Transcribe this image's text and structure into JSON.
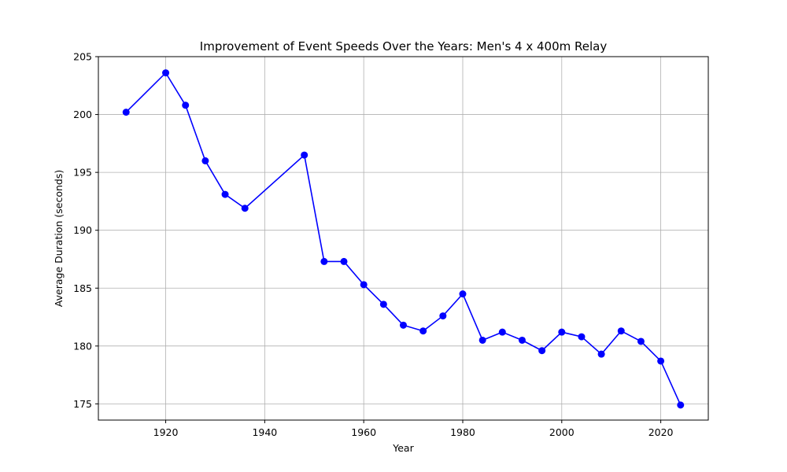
{
  "chart_data": {
    "type": "line",
    "title": "Improvement of Event Speeds Over the Years: Men's 4 x 400m Relay",
    "xlabel": "Year",
    "ylabel": "Average Duration (seconds)",
    "xlim": [
      1906.4,
      2029.6
    ],
    "ylim": [
      173.6,
      205
    ],
    "xticks": [
      1920,
      1940,
      1960,
      1980,
      2000,
      2020
    ],
    "yticks": [
      175,
      180,
      185,
      190,
      195,
      200,
      205
    ],
    "grid": true,
    "series": [
      {
        "color": "#0000ff",
        "marker": "circle",
        "x": [
          1912,
          1920,
          1924,
          1928,
          1932,
          1936,
          1948,
          1952,
          1956,
          1960,
          1964,
          1968,
          1972,
          1976,
          1980,
          1984,
          1988,
          1992,
          1996,
          2000,
          2004,
          2008,
          2012,
          2016,
          2020,
          2024
        ],
        "values": [
          200.2,
          203.6,
          200.8,
          196.0,
          193.1,
          191.9,
          196.5,
          187.3,
          187.3,
          185.3,
          183.6,
          181.8,
          181.3,
          182.6,
          184.5,
          180.5,
          181.2,
          180.5,
          179.6,
          181.2,
          180.8,
          179.3,
          181.3,
          180.4,
          178.7,
          174.9
        ]
      }
    ]
  }
}
